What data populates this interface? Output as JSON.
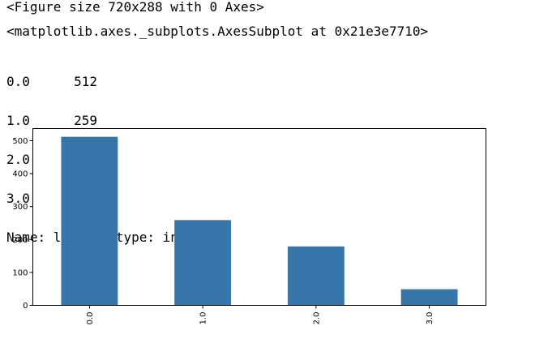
{
  "output": {
    "figure_line": "<Figure size 720x288 with 0 Axes>",
    "axes_line": "<matplotlib.axes._subplots.AxesSubplot at 0x21e3e7710>",
    "series": [
      {
        "index": "0.0",
        "value": "512"
      },
      {
        "index": "1.0",
        "value": "259"
      },
      {
        "index": "2.0",
        "value": "179"
      },
      {
        "index": "3.0",
        "value": "49"
      }
    ],
    "name_line": "Name: label, dtype: int64"
  },
  "colors": {
    "bar": "#3776ab"
  },
  "chart_data": {
    "type": "bar",
    "categories": [
      "0.0",
      "1.0",
      "2.0",
      "3.0"
    ],
    "values": [
      512,
      259,
      179,
      49
    ],
    "title": "",
    "xlabel": "",
    "ylabel": "",
    "ylim": [
      0,
      537
    ],
    "yticks": [
      0,
      100,
      200,
      300,
      400,
      500
    ],
    "grid": false,
    "legend": "none"
  }
}
